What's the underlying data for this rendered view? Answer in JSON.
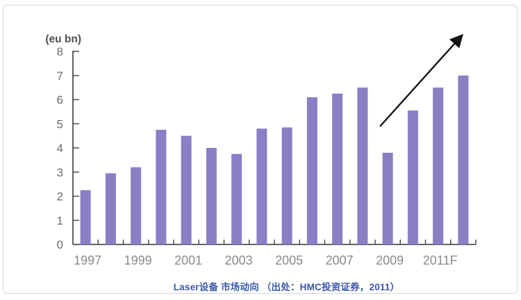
{
  "window": {
    "background_color": "#FFFFFF",
    "border_color": "#D5D5D5"
  },
  "chart_data": {
    "type": "bar",
    "unit_label": "(eu bn)",
    "categories": [
      "1997",
      "1998",
      "1999",
      "2000",
      "2001",
      "2002",
      "2003",
      "2004",
      "2005",
      "2006",
      "2007",
      "2008",
      "2009",
      "2010",
      "2011F",
      "2012F"
    ],
    "values": [
      2.25,
      2.95,
      3.2,
      4.75,
      4.5,
      4.0,
      3.75,
      4.8,
      4.85,
      6.1,
      6.25,
      6.5,
      3.8,
      5.55,
      6.5,
      7.0
    ],
    "x_tick_labels_shown": [
      "1997",
      "1999",
      "2001",
      "2003",
      "2005",
      "2007",
      "2009",
      "2011F"
    ],
    "x_label_every": 2,
    "y_ticks": [
      "0",
      "1",
      "2",
      "3",
      "4",
      "5",
      "6",
      "7",
      "8"
    ],
    "ylim": [
      0,
      8
    ],
    "grid": "off",
    "legend": "none",
    "bar_color": "#8A7EC4",
    "axis_color": "#4D4D4D",
    "y_label_color": "#6B6B6B",
    "x_label_color": "#8A8A8A",
    "annotation": {
      "type": "trend-arrow",
      "direction": "up-right",
      "color": "#141414"
    }
  },
  "caption": {
    "text": "Laser设备 市场动向 （出处：HMC投资证券，2011）",
    "color": "#3A57A7"
  }
}
